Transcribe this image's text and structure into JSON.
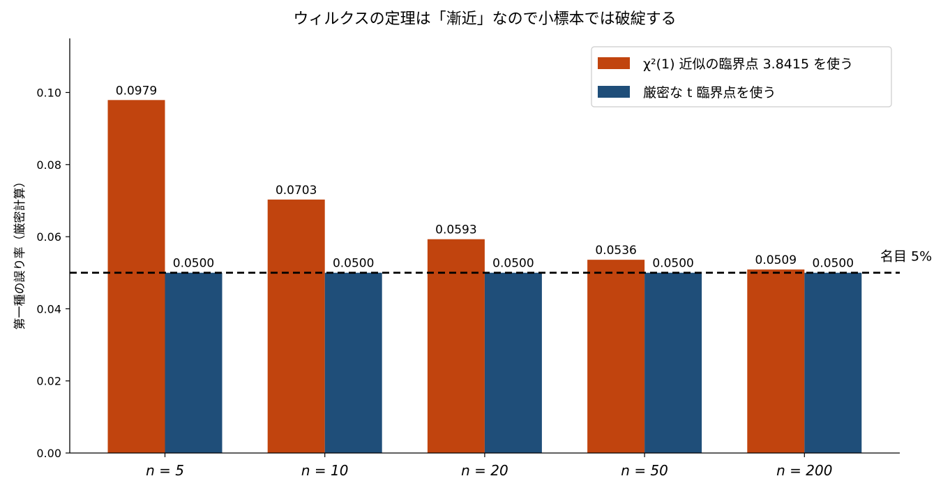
{
  "chart_data": {
    "type": "bar",
    "title": "ウィルクスの定理は「漸近」なので小標本では破綻する",
    "xlabel": "",
    "ylabel": "第一種の誤り率（厳密計算）",
    "categories": [
      "n = 5",
      "n = 10",
      "n = 20",
      "n = 50",
      "n = 200"
    ],
    "series": [
      {
        "name": "χ²(1) 近似の臨界点 3.8415 を使う",
        "color": "#c1440e",
        "values": [
          0.0979,
          0.0703,
          0.0593,
          0.0536,
          0.0509
        ],
        "labels": [
          "0.0979",
          "0.0703",
          "0.0593",
          "0.0536",
          "0.0509"
        ]
      },
      {
        "name": "厳密な t 臨界点を使う",
        "color": "#1f4e79",
        "values": [
          0.05,
          0.05,
          0.05,
          0.05,
          0.05
        ],
        "labels": [
          "0.0500",
          "0.0500",
          "0.0500",
          "0.0500",
          "0.0500"
        ]
      }
    ],
    "ylim": [
      0,
      0.115
    ],
    "yticks": [
      "0.00",
      "0.02",
      "0.04",
      "0.06",
      "0.08",
      "0.10"
    ],
    "reference_line": {
      "value": 0.05,
      "label": "名目 5%",
      "style": "dashed",
      "color": "#000000"
    },
    "legend_position": "top-right",
    "grid": false
  }
}
